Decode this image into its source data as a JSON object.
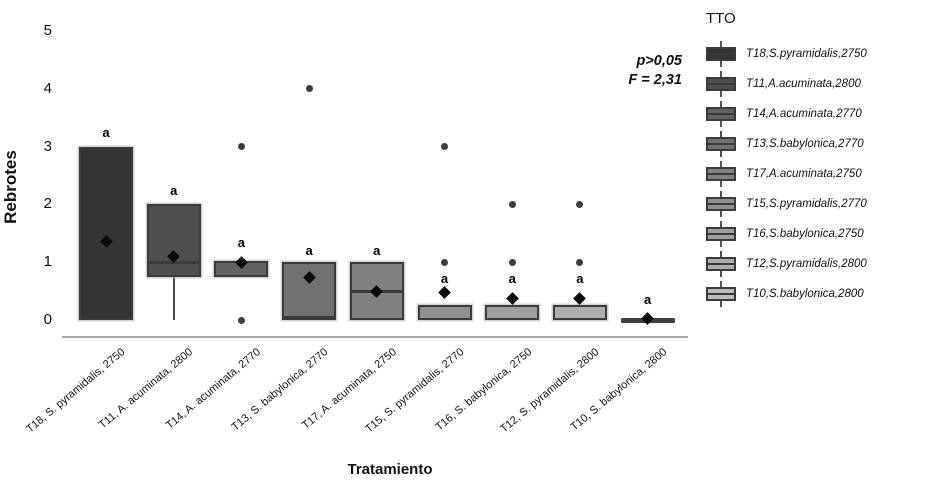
{
  "chart_data": {
    "type": "boxplot",
    "title": "",
    "xlabel": "Tratamiento",
    "ylabel": "Rebrotes",
    "ylim": [
      0,
      5
    ],
    "y_ticks": [
      0,
      1,
      2,
      3,
      4,
      5
    ],
    "grid": false,
    "legend_position": "right",
    "legend_title": "TTO",
    "annotation": {
      "p_value": "p>0,05",
      "f_value": "F = 2,31"
    },
    "series": [
      {
        "id": "T18",
        "x_label": "T18, S. pyramidalis, 2750",
        "legend_label": "T18,S.pyramidalis,2750",
        "color": "#343434",
        "q1": 0,
        "q3": 3,
        "median": null,
        "whisker_low": null,
        "mean": 1.35,
        "outliers": [],
        "sig": "a",
        "sig_y": 3.22,
        "flat": false
      },
      {
        "id": "T11",
        "x_label": "T11, A. acuminata, 2800",
        "legend_label": "T11,A.acuminata,2800",
        "color": "#4e4e4e",
        "q1": 0.75,
        "q3": 2,
        "median": 1.0,
        "whisker_low": 0,
        "mean": 1.1,
        "outliers": [],
        "sig": "a",
        "sig_y": 2.22,
        "flat": false
      },
      {
        "id": "T14",
        "x_label": "T14, A. acuminata, 2770",
        "legend_label": "T14,A.acuminata,2770",
        "color": "#626262",
        "q1": 0.75,
        "q3": 1.02,
        "median": null,
        "whisker_low": null,
        "mean": 1.0,
        "outliers": [
          3,
          0
        ],
        "sig": "a",
        "sig_y": 1.32,
        "flat": false
      },
      {
        "id": "T13",
        "x_label": "T13, S. babylonica, 2770",
        "legend_label": "T13,S.babylonica,2770",
        "color": "#717171",
        "q1": 0,
        "q3": 1,
        "median": 0.04,
        "whisker_low": null,
        "mean": 0.73,
        "outliers": [
          4
        ],
        "sig": "a",
        "sig_y": 1.18,
        "flat": false
      },
      {
        "id": "T17",
        "x_label": "T17, A. acuminata, 2750",
        "legend_label": "T17,A.acuminata,2750",
        "color": "#818181",
        "q1": 0,
        "q3": 1,
        "median": 0.5,
        "whisker_low": null,
        "mean": 0.5,
        "outliers": [],
        "sig": "a",
        "sig_y": 1.18,
        "flat": false
      },
      {
        "id": "T15",
        "x_label": "T15, S. pyramidalis, 2770",
        "legend_label": "T15,S.pyramidalis,2770",
        "color": "#909090",
        "q1": 0,
        "q3": 0.26,
        "median": null,
        "whisker_low": null,
        "mean": 0.48,
        "outliers": [
          3,
          1
        ],
        "sig": "a",
        "sig_y": 0.7,
        "flat": false
      },
      {
        "id": "T16",
        "x_label": "T16, S. babylonica, 2750",
        "legend_label": "T16,S.babylonica,2750",
        "color": "#9f9f9f",
        "q1": 0,
        "q3": 0.26,
        "median": null,
        "whisker_low": null,
        "mean": 0.37,
        "outliers": [
          2,
          1
        ],
        "sig": "a",
        "sig_y": 0.7,
        "flat": false
      },
      {
        "id": "T12",
        "x_label": "T12, S. pyramidalis, 2800",
        "legend_label": "T12,S.pyramidalis,2800",
        "color": "#aeaeae",
        "q1": 0,
        "q3": 0.26,
        "median": null,
        "whisker_low": null,
        "mean": 0.37,
        "outliers": [
          2,
          1
        ],
        "sig": "a",
        "sig_y": 0.7,
        "flat": false
      },
      {
        "id": "T10",
        "x_label": "T10, S. babylonica, 2800",
        "legend_label": "T10,S.babylonica,2800",
        "color": "#bcbcbc",
        "q1": 0,
        "q3": 0.05,
        "median": null,
        "whisker_low": null,
        "mean": 0.02,
        "outliers": [],
        "sig": "a",
        "sig_y": 0.33,
        "flat": true
      }
    ]
  }
}
